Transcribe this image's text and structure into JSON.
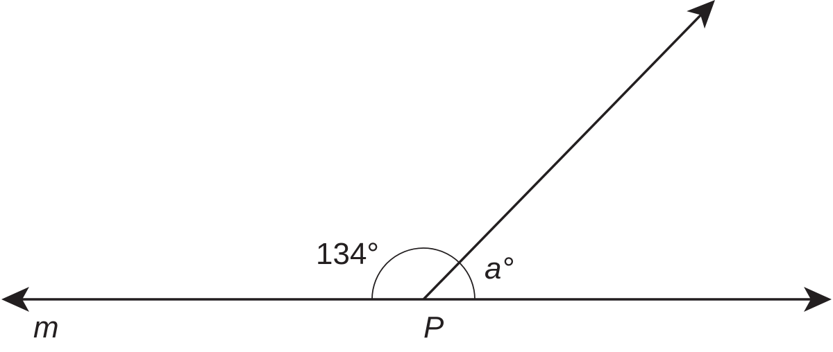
{
  "diagram": {
    "line_label": "m",
    "point_label": "P",
    "angle_left_label": "134°",
    "angle_right_label": "a°",
    "stroke_color": "#231f20"
  }
}
